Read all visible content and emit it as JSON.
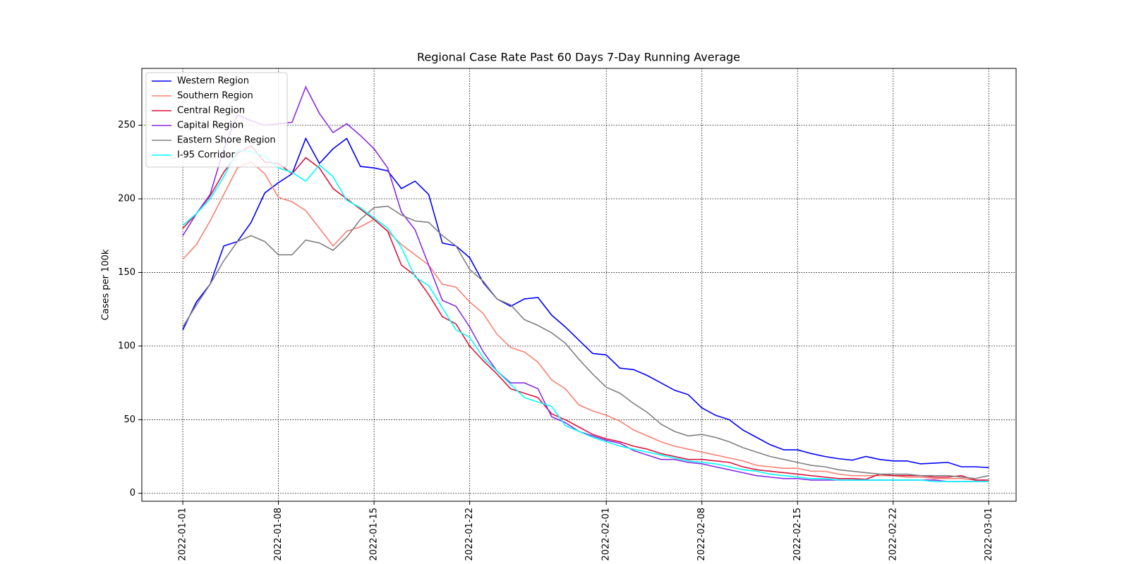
{
  "chart_data": {
    "type": "line",
    "title": "Regional Case Rate  Past 60 Days 7-Day Running Average",
    "y_label": "Cases per 100k",
    "x_start": "2022-01-01",
    "x_step_days": 1,
    "xlim": [
      "2021-12-29",
      "2022-03-03"
    ],
    "xticks": [
      "2022-01-01",
      "2022-01-08",
      "2022-01-15",
      "2022-01-22",
      "2022-02-01",
      "2022-02-08",
      "2022-02-15",
      "2022-02-22",
      "2022-03-01"
    ],
    "ylim": [
      -5.4,
      288.6
    ],
    "yticks": [
      0,
      50,
      100,
      150,
      200,
      250
    ],
    "grid": true,
    "legend": "upper left",
    "series": [
      {
        "name": "Western Region",
        "color": "#0000ff",
        "values": [
          111,
          130,
          142,
          168,
          171,
          184,
          204,
          211,
          217,
          241,
          224,
          234,
          241,
          222,
          221,
          219,
          207,
          212,
          203,
          170,
          168,
          160,
          143,
          132,
          127,
          132,
          133,
          121,
          113,
          104,
          95,
          94,
          85,
          84,
          80,
          75,
          70,
          67,
          58,
          53,
          50,
          43,
          38,
          33,
          29.5,
          29.5,
          27,
          25,
          23.5,
          22.5,
          25,
          23,
          22,
          22,
          20,
          20.5,
          21,
          18,
          18,
          17.5
        ]
      },
      {
        "name": "Southern Region",
        "color": "#fa8072",
        "values": [
          159,
          169,
          185,
          203,
          221,
          225,
          217,
          201,
          198,
          192,
          180,
          168,
          178,
          181,
          186,
          178,
          169,
          162,
          155,
          142,
          140,
          130,
          122,
          108,
          99,
          96,
          89,
          77,
          71,
          60,
          56,
          53,
          49,
          43,
          39,
          35,
          32,
          30,
          28,
          26,
          24,
          22,
          19,
          18,
          17,
          17,
          15,
          15,
          13,
          12,
          12,
          12,
          12,
          11,
          11,
          10,
          10,
          10,
          9,
          8
        ]
      },
      {
        "name": "Central Region",
        "color": "#dc143c",
        "values": [
          180,
          190,
          202,
          218,
          231,
          236,
          225,
          224,
          217,
          228,
          221,
          207,
          200,
          193,
          186,
          178,
          155,
          148,
          135,
          120,
          115,
          100,
          90,
          81,
          71,
          68,
          65,
          54,
          50,
          45,
          40,
          37,
          35,
          32,
          30,
          27,
          25,
          23,
          23,
          22,
          21,
          18,
          16,
          15,
          14,
          13,
          12,
          11,
          10,
          10,
          9.5,
          13,
          12,
          12,
          12,
          11,
          11,
          12,
          9,
          9
        ]
      },
      {
        "name": "Capital Region",
        "color": "#8a2be2",
        "values": [
          175,
          190,
          203,
          234,
          257,
          253,
          250,
          251,
          252,
          276,
          258,
          245,
          251,
          243,
          234,
          221,
          191,
          179,
          155,
          131,
          127,
          113,
          96,
          83,
          75,
          75,
          71,
          52,
          48,
          42,
          39,
          36,
          34,
          29,
          26,
          23,
          23,
          21,
          20,
          18,
          16,
          14,
          12,
          11,
          10,
          10,
          9,
          9,
          9,
          9,
          9,
          9,
          9,
          9,
          9,
          9,
          8,
          8,
          8,
          8
        ]
      },
      {
        "name": "Eastern Shore Region",
        "color": "#808080",
        "values": [
          113,
          128,
          142,
          158,
          171,
          175,
          171,
          162,
          162,
          172,
          170,
          165,
          174,
          186,
          194,
          195,
          189,
          185,
          184,
          175,
          168,
          152,
          144,
          132,
          128,
          118,
          114,
          109,
          102,
          91,
          81,
          72,
          68,
          61,
          55,
          47,
          42,
          39,
          40,
          38,
          35,
          31,
          28,
          25,
          23,
          21,
          19,
          18,
          16,
          15,
          14,
          13,
          13,
          13,
          12,
          12,
          12,
          11,
          10,
          12
        ]
      },
      {
        "name": "I-95 Corridor",
        "color": "#00ffff",
        "values": [
          182,
          190,
          200,
          215,
          233,
          232,
          229,
          221,
          218,
          212,
          223,
          215,
          199,
          194,
          187,
          180,
          167,
          147,
          141,
          126,
          111,
          106,
          92,
          83,
          74,
          65,
          62,
          59,
          46,
          42,
          38,
          35,
          32,
          30,
          28,
          26,
          24,
          22,
          21,
          20,
          18,
          16,
          15,
          13,
          12,
          11,
          10,
          10,
          9,
          9,
          9,
          9,
          9,
          9,
          9,
          8,
          8,
          8,
          8,
          8
        ]
      }
    ]
  }
}
